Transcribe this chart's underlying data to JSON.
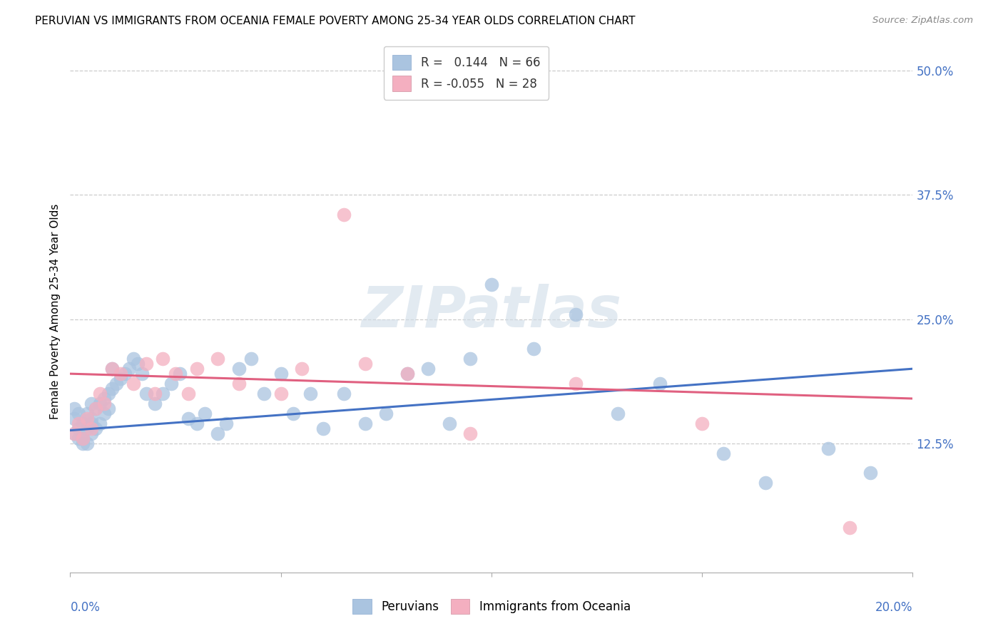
{
  "title": "PERUVIAN VS IMMIGRANTS FROM OCEANIA FEMALE POVERTY AMONG 25-34 YEAR OLDS CORRELATION CHART",
  "source": "Source: ZipAtlas.com",
  "ylabel": "Female Poverty Among 25-34 Year Olds",
  "xlim": [
    0.0,
    0.2
  ],
  "ylim": [
    -0.005,
    0.52
  ],
  "R_blue": 0.144,
  "N_blue": 66,
  "R_pink": -0.055,
  "N_pink": 28,
  "blue_color": "#aac4e0",
  "pink_color": "#f4afc0",
  "blue_line_color": "#4472c4",
  "pink_line_color": "#e06080",
  "watermark": "ZIPatlas",
  "legend_label_blue": "Peruvians",
  "legend_label_pink": "Immigrants from Oceania",
  "yticks": [
    0.0,
    0.125,
    0.25,
    0.375,
    0.5
  ],
  "ytick_labels": [
    "",
    "12.5%",
    "25.0%",
    "37.5%",
    "50.0%"
  ],
  "blue_trend_x0": 0.0,
  "blue_trend_y0": 0.138,
  "blue_trend_x1": 0.2,
  "blue_trend_y1": 0.2,
  "pink_trend_x0": 0.0,
  "pink_trend_y0": 0.195,
  "pink_trend_x1": 0.2,
  "pink_trend_y1": 0.17,
  "blue_x": [
    0.001,
    0.001,
    0.001,
    0.002,
    0.002,
    0.002,
    0.003,
    0.003,
    0.003,
    0.004,
    0.004,
    0.004,
    0.005,
    0.005,
    0.005,
    0.005,
    0.006,
    0.006,
    0.007,
    0.007,
    0.008,
    0.008,
    0.009,
    0.009,
    0.01,
    0.01,
    0.011,
    0.012,
    0.013,
    0.014,
    0.015,
    0.016,
    0.017,
    0.018,
    0.02,
    0.022,
    0.024,
    0.026,
    0.028,
    0.03,
    0.032,
    0.035,
    0.037,
    0.04,
    0.043,
    0.046,
    0.05,
    0.053,
    0.057,
    0.06,
    0.065,
    0.07,
    0.075,
    0.08,
    0.085,
    0.09,
    0.095,
    0.1,
    0.11,
    0.12,
    0.13,
    0.14,
    0.155,
    0.165,
    0.18,
    0.19
  ],
  "blue_y": [
    0.135,
    0.15,
    0.16,
    0.13,
    0.14,
    0.155,
    0.13,
    0.145,
    0.125,
    0.14,
    0.155,
    0.125,
    0.135,
    0.15,
    0.145,
    0.165,
    0.14,
    0.16,
    0.145,
    0.165,
    0.155,
    0.17,
    0.16,
    0.175,
    0.18,
    0.2,
    0.185,
    0.19,
    0.195,
    0.2,
    0.21,
    0.205,
    0.195,
    0.175,
    0.165,
    0.175,
    0.185,
    0.195,
    0.15,
    0.145,
    0.155,
    0.135,
    0.145,
    0.2,
    0.21,
    0.175,
    0.195,
    0.155,
    0.175,
    0.14,
    0.175,
    0.145,
    0.155,
    0.195,
    0.2,
    0.145,
    0.21,
    0.285,
    0.22,
    0.255,
    0.155,
    0.185,
    0.115,
    0.085,
    0.12,
    0.095
  ],
  "pink_x": [
    0.001,
    0.002,
    0.003,
    0.004,
    0.005,
    0.006,
    0.007,
    0.008,
    0.01,
    0.012,
    0.015,
    0.018,
    0.02,
    0.022,
    0.025,
    0.028,
    0.03,
    0.035,
    0.04,
    0.05,
    0.055,
    0.065,
    0.07,
    0.08,
    0.095,
    0.12,
    0.15,
    0.185
  ],
  "pink_y": [
    0.135,
    0.145,
    0.13,
    0.15,
    0.14,
    0.16,
    0.175,
    0.165,
    0.2,
    0.195,
    0.185,
    0.205,
    0.175,
    0.21,
    0.195,
    0.175,
    0.2,
    0.21,
    0.185,
    0.175,
    0.2,
    0.355,
    0.205,
    0.195,
    0.135,
    0.185,
    0.145,
    0.04
  ]
}
